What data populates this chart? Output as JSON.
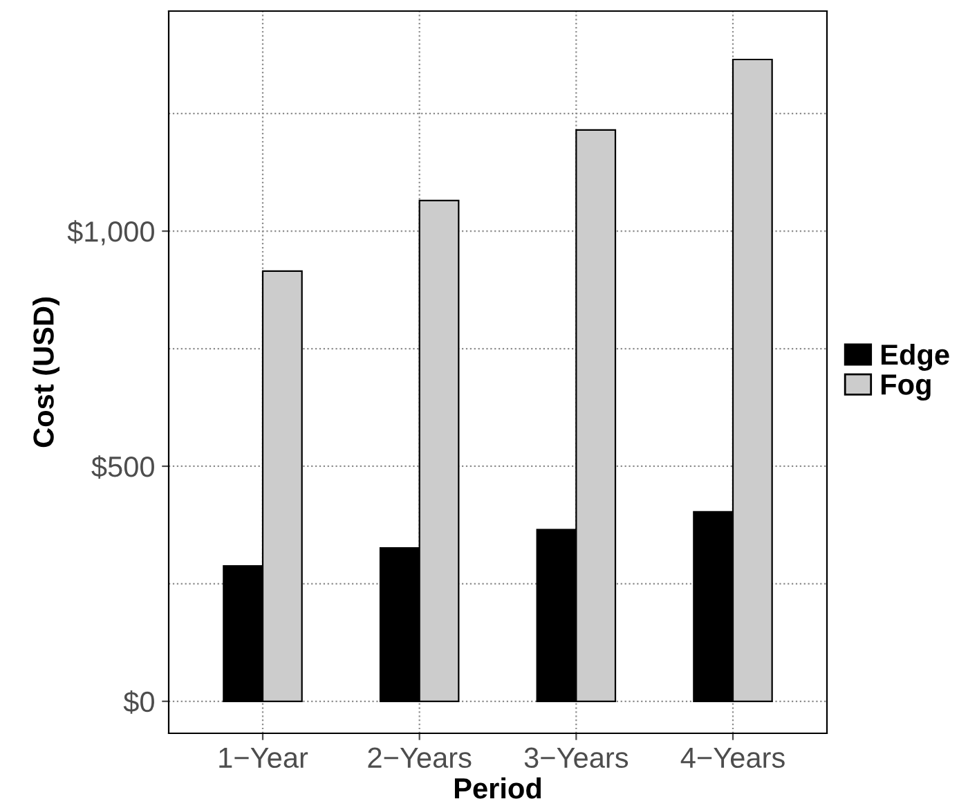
{
  "chart_data": {
    "type": "bar",
    "xlabel": "Period",
    "ylabel": "Cost (USD)",
    "categories": [
      "1−Year",
      "2−Years",
      "3−Years",
      "4−Years"
    ],
    "series": [
      {
        "name": "Edge",
        "color": "#000000",
        "values": [
          288,
          326,
          365,
          403
        ]
      },
      {
        "name": "Fog",
        "color": "#cccccc",
        "values": [
          915,
          1065,
          1215,
          1365
        ]
      }
    ],
    "ylim": [
      -68,
      1468
    ],
    "yticks": [
      {
        "value": 0,
        "label": "$0"
      },
      {
        "value": 250,
        "label": null
      },
      {
        "value": 500,
        "label": "$500"
      },
      {
        "value": 750,
        "label": null
      },
      {
        "value": 1000,
        "label": "$1,000"
      },
      {
        "value": 1250,
        "label": null
      }
    ],
    "grid": true,
    "legend": "right"
  }
}
